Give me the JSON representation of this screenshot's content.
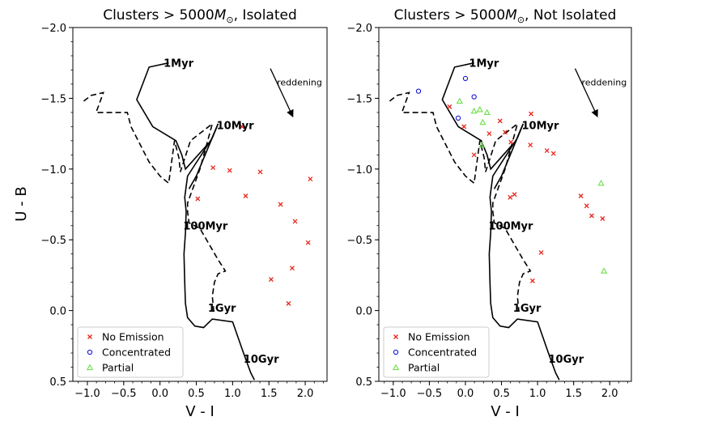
{
  "ylabel": "U - B",
  "chart_data": [
    {
      "type": "scatter",
      "title_prefix": "Clusters > 5000",
      "title_sym": "M",
      "title_sub": "⊙",
      "title_suffix": ", Isolated",
      "xlabel": "V - I",
      "xlim": [
        -1.2,
        2.3
      ],
      "ylim": [
        0.5,
        -2.0
      ],
      "xticks": [
        -1.0,
        -0.5,
        0.0,
        0.5,
        1.0,
        1.5,
        2.0
      ],
      "xtick_labels": [
        "−1.0",
        "−0.5",
        "0.0",
        "0.5",
        "1.0",
        "1.5",
        "2.0"
      ],
      "yticks": [
        -2.0,
        -1.5,
        -1.0,
        -0.5,
        0.0,
        0.5
      ],
      "ytick_labels": [
        "−2.0",
        "−1.5",
        "−1.0",
        "−0.5",
        "0.0",
        "0.5"
      ],
      "track_labels": [
        {
          "text": "1Myr",
          "x": 0.05,
          "y": -1.75
        },
        {
          "text": "10Myr",
          "x": 0.78,
          "y": -1.31
        },
        {
          "text": "100Myr",
          "x": 0.32,
          "y": -0.6
        },
        {
          "text": "1Gyr",
          "x": 0.66,
          "y": -0.02
        },
        {
          "text": "10Gyr",
          "x": 1.15,
          "y": 0.34
        }
      ],
      "reddening_label": "reddening",
      "series": [
        {
          "name": "No Emission",
          "marker": "x",
          "color": "#e8281e",
          "x": [
            0.73,
            0.96,
            1.38,
            2.07,
            0.52,
            1.18,
            1.66,
            1.86,
            2.04,
            1.82,
            1.53,
            1.77,
            1.13
          ],
          "y": [
            -1.01,
            -0.99,
            -0.98,
            -0.93,
            -0.79,
            -0.81,
            -0.75,
            -0.63,
            -0.48,
            -0.3,
            -0.22,
            -0.05,
            -1.3
          ]
        },
        {
          "name": "Concentrated",
          "marker": "o",
          "color": "#1414dc",
          "x": [],
          "y": []
        },
        {
          "name": "Partial",
          "marker": "^",
          "color": "#6ee04a",
          "x": [],
          "y": []
        }
      ]
    },
    {
      "type": "scatter",
      "title_prefix": "Clusters > 5000",
      "title_sym": "M",
      "title_sub": "⊙",
      "title_suffix": ", Not Isolated",
      "xlabel": "V - I",
      "xlim": [
        -1.2,
        2.3
      ],
      "ylim": [
        0.5,
        -2.0
      ],
      "xticks": [
        -1.0,
        -0.5,
        0.0,
        0.5,
        1.0,
        1.5,
        2.0
      ],
      "xtick_labels": [
        "−1.0",
        "−0.5",
        "0.0",
        "0.5",
        "1.0",
        "1.5",
        "2.0"
      ],
      "yticks": [
        -2.0,
        -1.5,
        -1.0,
        -0.5,
        0.0,
        0.5
      ],
      "ytick_labels": [
        "−2.0",
        "−1.5",
        "−1.0",
        "−0.5",
        "0.0",
        "0.5"
      ],
      "track_labels": [
        {
          "text": "1Myr",
          "x": 0.05,
          "y": -1.75
        },
        {
          "text": "10Myr",
          "x": 0.78,
          "y": -1.31
        },
        {
          "text": "100Myr",
          "x": 0.32,
          "y": -0.6
        },
        {
          "text": "1Gyr",
          "x": 0.66,
          "y": -0.02
        },
        {
          "text": "10Gyr",
          "x": 1.15,
          "y": 0.34
        }
      ],
      "reddening_label": "reddening",
      "series": [
        {
          "name": "No Emission",
          "marker": "x",
          "color": "#e8281e",
          "x": [
            -0.22,
            0.48,
            0.55,
            0.91,
            0.63,
            0.9,
            1.13,
            1.22,
            0.62,
            0.68,
            0.33,
            1.6,
            1.68,
            1.75,
            1.9,
            1.05,
            0.93,
            -0.02,
            0.12
          ],
          "y": [
            -1.44,
            -1.34,
            -1.26,
            -1.39,
            -1.19,
            -1.17,
            -1.13,
            -1.11,
            -0.8,
            -0.82,
            -1.25,
            -0.81,
            -0.74,
            -0.67,
            -0.65,
            -0.41,
            -0.21,
            -1.3,
            -1.1
          ]
        },
        {
          "name": "Concentrated",
          "marker": "o",
          "color": "#1414dc",
          "x": [
            -0.65,
            0.0,
            0.12,
            -0.1
          ],
          "y": [
            -1.55,
            -1.64,
            -1.51,
            -1.36
          ]
        },
        {
          "name": "Partial",
          "marker": "^",
          "color": "#6ee04a",
          "x": [
            -0.08,
            0.12,
            0.2,
            0.24,
            0.23,
            1.88,
            1.92,
            0.3
          ],
          "y": [
            -1.48,
            -1.41,
            -1.42,
            -1.33,
            -1.17,
            -0.9,
            -0.28,
            -1.4
          ]
        }
      ]
    }
  ]
}
